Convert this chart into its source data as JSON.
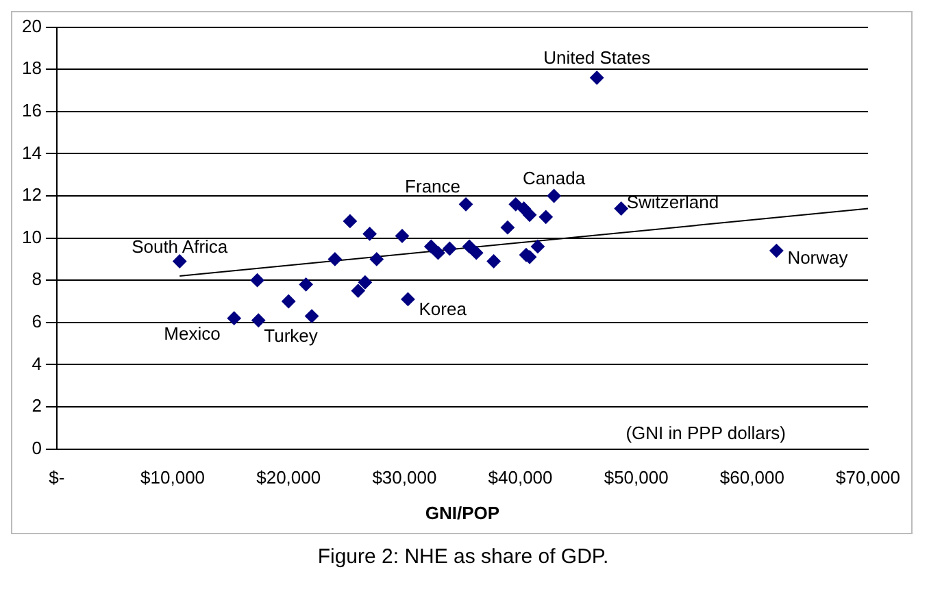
{
  "chart_data": {
    "type": "scatter",
    "title": "Figure 2: NHE as share of GDP.",
    "xlabel": "GNI/POP",
    "xlim": [
      0,
      70000
    ],
    "xticks": [
      {
        "value": 0,
        "label": "$-"
      },
      {
        "value": 10000,
        "label": "$10,000"
      },
      {
        "value": 20000,
        "label": "$20,000"
      },
      {
        "value": 30000,
        "label": "$30,000"
      },
      {
        "value": 40000,
        "label": "$40,000"
      },
      {
        "value": 50000,
        "label": "$50,000"
      },
      {
        "value": 60000,
        "label": "$60,000"
      },
      {
        "value": 70000,
        "label": "$70,000"
      }
    ],
    "ylim": [
      0,
      20
    ],
    "yticks": [
      0,
      2,
      4,
      6,
      8,
      10,
      12,
      14,
      16,
      18,
      20
    ],
    "grid": "y",
    "legend": false,
    "marker": "diamond",
    "series": [
      {
        "type": "scatter",
        "color": "#000080",
        "x": [
          10600,
          15300,
          17300,
          17400,
          20000,
          21500,
          22000,
          24000,
          25300,
          26000,
          26600,
          27000,
          27600,
          29800,
          30300,
          32300,
          32900,
          33900,
          35300,
          35600,
          36200,
          37700,
          38900,
          39600,
          40300,
          40800,
          40500,
          40800,
          41500,
          42200,
          42900,
          46600,
          48700,
          62100
        ],
        "values": [
          8.9,
          6.2,
          8.0,
          6.1,
          7.0,
          7.8,
          6.3,
          9.0,
          10.8,
          7.5,
          7.9,
          10.2,
          9.0,
          10.1,
          7.1,
          9.6,
          9.3,
          9.5,
          11.6,
          9.6,
          9.3,
          8.9,
          10.5,
          11.6,
          11.4,
          11.1,
          9.2,
          9.1,
          9.6,
          11.0,
          12.0,
          17.6,
          11.4,
          9.4
        ]
      },
      {
        "type": "line",
        "color": "#000000",
        "marker": "none",
        "x": [
          10600,
          70000
        ],
        "values": [
          8.2,
          11.4
        ]
      }
    ],
    "annotations": [
      {
        "text": "South Africa",
        "x": 10600,
        "y": 8.9
      },
      {
        "text": "Mexico",
        "x": 15300,
        "y": 6.2
      },
      {
        "text": "Turkey",
        "x": 17400,
        "y": 6.1
      },
      {
        "text": "Korea",
        "x": 30300,
        "y": 7.1
      },
      {
        "text": "France",
        "x": 35300,
        "y": 11.6
      },
      {
        "text": "Canada",
        "x": 42900,
        "y": 12.0
      },
      {
        "text": "United States",
        "x": 46600,
        "y": 17.6
      },
      {
        "text": "Switzerland",
        "x": 48700,
        "y": 11.4
      },
      {
        "text": "Norway",
        "x": 62100,
        "y": 9.4
      },
      "(GNI in PPP dollars)"
    ]
  }
}
